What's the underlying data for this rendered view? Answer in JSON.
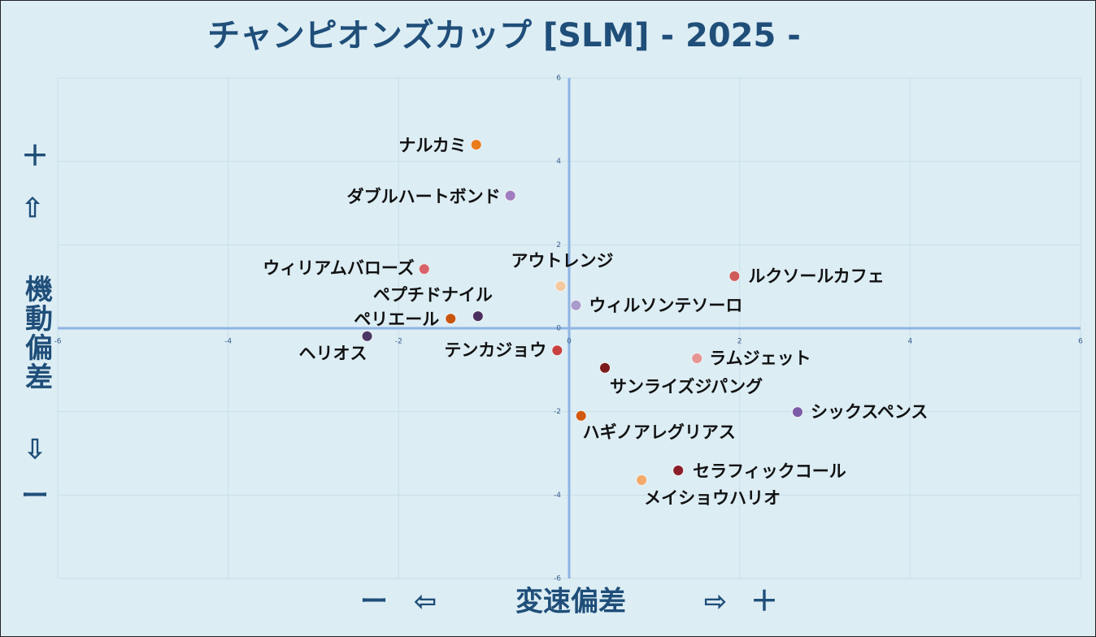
{
  "chart_data": {
    "type": "scatter",
    "title": "チャンピオンズカップ [SLM]  - 2025 -",
    "x_axis": {
      "minus": "ー",
      "left": "⇦",
      "label": "変速偏差",
      "right": "⇨",
      "plus": "＋"
    },
    "y_axis": {
      "plus": "＋",
      "up": "⇧",
      "label": "機動偏差",
      "down": "⇩",
      "minus": "ー"
    },
    "labels": [
      "ナルカミ",
      "ダブルハートボンド",
      "ウィリアムバローズ",
      "アウトレンジ",
      "ルクソールカフェ",
      "ウィルソンテソーロ",
      "ペプチドナイル",
      "ペリエール",
      "ヘリオス",
      "テンカジョウ",
      "ラムジェット",
      "サンライズジパング",
      "シックスペンス",
      "ハギノアレグリアス",
      "セラフィックコール",
      "メイショウハリオ"
    ],
    "x": [
      -1.09,
      -0.69,
      -1.7,
      -0.1,
      1.94,
      0.08,
      -1.07,
      -1.39,
      -2.37,
      -0.14,
      1.5,
      0.42,
      2.68,
      0.14,
      1.28,
      0.85
    ],
    "values": [
      4.4,
      3.18,
      1.42,
      1.01,
      1.25,
      0.55,
      0.29,
      0.23,
      -0.19,
      -0.53,
      -0.72,
      -0.95,
      -2.01,
      -2.1,
      -3.41,
      -3.64
    ],
    "colors": [
      "#e97c1c",
      "#a07cc0",
      "#d9636a",
      "#f5c9a0",
      "#d05a5a",
      "#a89ccc",
      "#4a2f5e",
      "#c8550c",
      "#4b3866",
      "#c84040",
      "#e89494",
      "#7b1a1a",
      "#7b5ba8",
      "#d2580c",
      "#8b1e2a",
      "#f3aa6a"
    ],
    "xlim": [
      -6,
      6
    ],
    "ylim": [
      -6,
      6
    ],
    "xticks": [
      -6,
      -4,
      -2,
      0,
      2,
      4,
      6
    ],
    "yticks": [
      -6,
      -4,
      -2,
      0,
      2,
      4,
      6
    ],
    "grid": true
  }
}
